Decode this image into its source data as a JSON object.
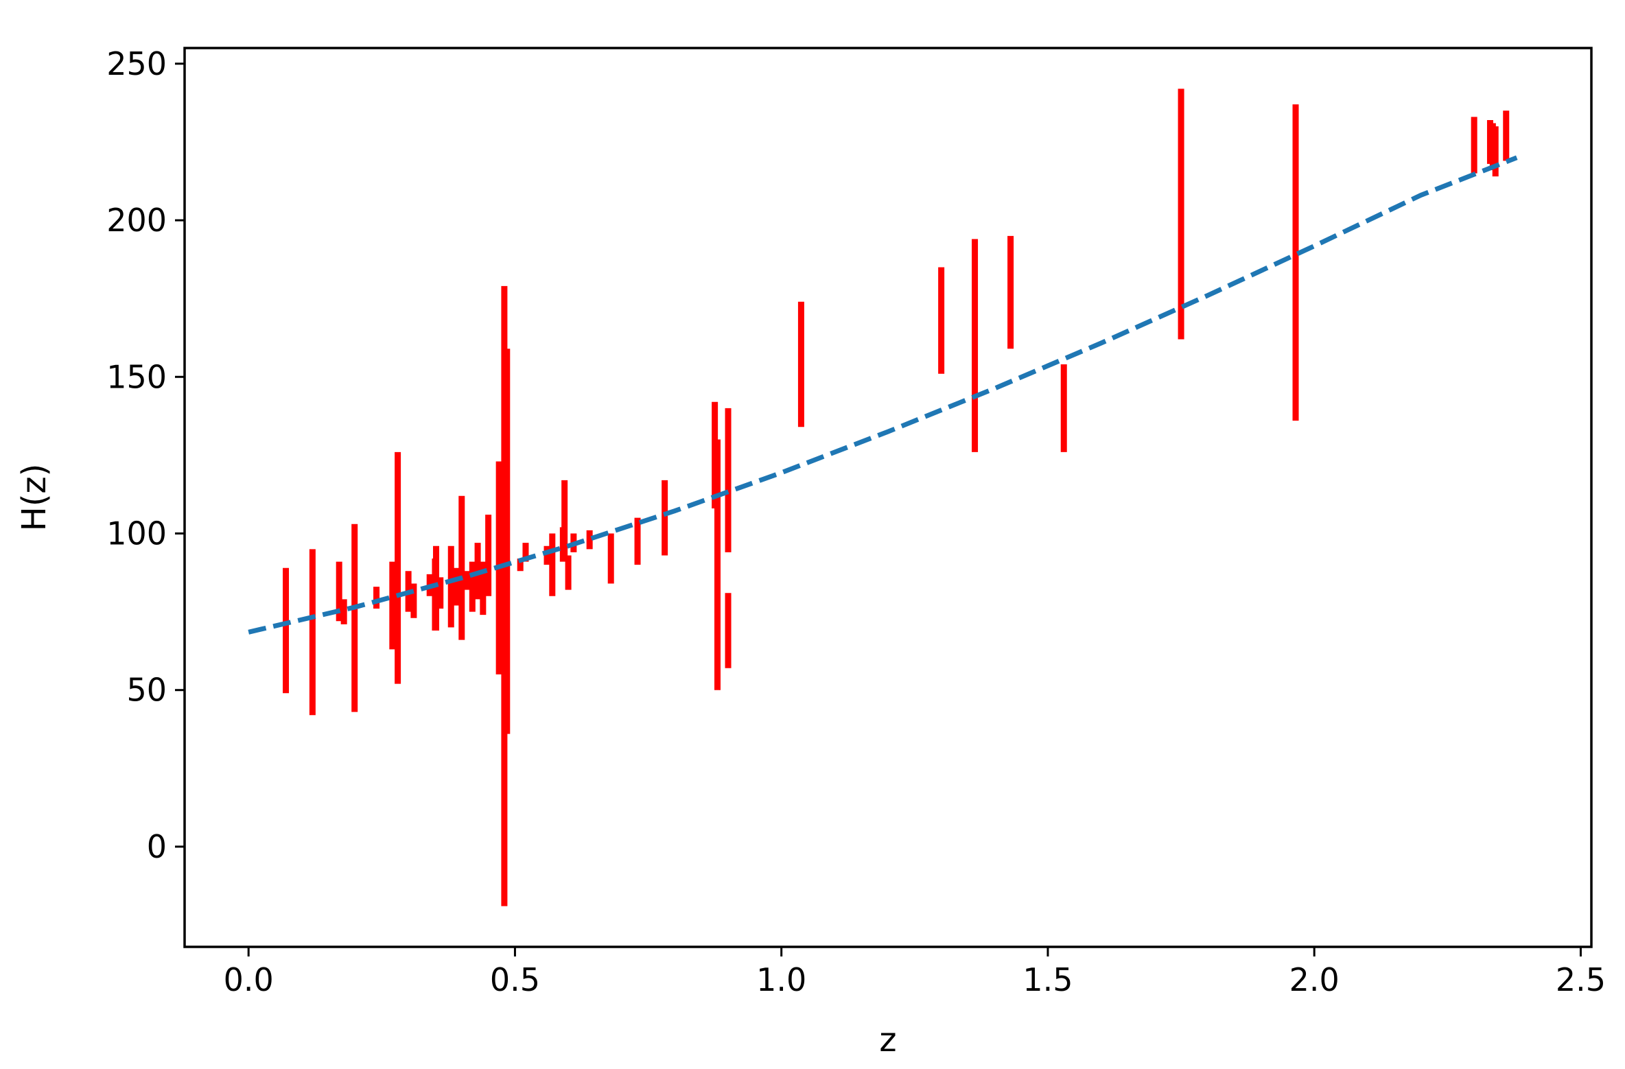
{
  "chart_data": {
    "type": "scatter",
    "title": "",
    "xlabel": "z",
    "ylabel": "H(z)",
    "xlim": [
      -0.12,
      2.52
    ],
    "ylim": [
      -32,
      255
    ],
    "xticks": [
      0.0,
      0.5,
      1.0,
      1.5,
      2.0,
      2.5
    ],
    "xtick_labels": [
      "0.0",
      "0.5",
      "1.0",
      "1.5",
      "2.0",
      "2.5"
    ],
    "yticks": [
      0,
      50,
      100,
      150,
      200,
      250
    ],
    "ytick_labels": [
      "0",
      "50",
      "100",
      "150",
      "200",
      "250"
    ],
    "grid": false,
    "colors": {
      "errorbars": "#ff0000",
      "model_line": "#1f77b4"
    },
    "series": [
      {
        "kind": "errorbar",
        "points": [
          {
            "z": 0.07,
            "ylow": 49,
            "yhigh": 89
          },
          {
            "z": 0.12,
            "ylow": 42,
            "yhigh": 95
          },
          {
            "z": 0.17,
            "ylow": 72,
            "yhigh": 91
          },
          {
            "z": 0.179,
            "ylow": 71,
            "yhigh": 79
          },
          {
            "z": 0.199,
            "ylow": 43,
            "yhigh": 103
          },
          {
            "z": 0.24,
            "ylow": 76,
            "yhigh": 83
          },
          {
            "z": 0.27,
            "ylow": 63,
            "yhigh": 91
          },
          {
            "z": 0.28,
            "ylow": 52,
            "yhigh": 126
          },
          {
            "z": 0.3,
            "ylow": 75,
            "yhigh": 88
          },
          {
            "z": 0.31,
            "ylow": 73,
            "yhigh": 84
          },
          {
            "z": 0.34,
            "ylow": 80,
            "yhigh": 87
          },
          {
            "z": 0.35,
            "ylow": 69,
            "yhigh": 92
          },
          {
            "z": 0.352,
            "ylow": 69,
            "yhigh": 96
          },
          {
            "z": 0.36,
            "ylow": 76,
            "yhigh": 86
          },
          {
            "z": 0.38,
            "ylow": 70,
            "yhigh": 96
          },
          {
            "z": 0.39,
            "ylow": 77,
            "yhigh": 89
          },
          {
            "z": 0.4,
            "ylow": 66,
            "yhigh": 112
          },
          {
            "z": 0.41,
            "ylow": 82,
            "yhigh": 88
          },
          {
            "z": 0.42,
            "ylow": 75,
            "yhigh": 91
          },
          {
            "z": 0.43,
            "ylow": 79,
            "yhigh": 97
          },
          {
            "z": 0.44,
            "ylow": 74,
            "yhigh": 91
          },
          {
            "z": 0.45,
            "ylow": 80,
            "yhigh": 106
          },
          {
            "z": 0.47,
            "ylow": 55,
            "yhigh": 123
          },
          {
            "z": 0.475,
            "ylow": 58,
            "yhigh": 112
          },
          {
            "z": 0.48,
            "ylow": -19,
            "yhigh": 179
          },
          {
            "z": 0.485,
            "ylow": 36,
            "yhigh": 159
          },
          {
            "z": 0.51,
            "ylow": 88,
            "yhigh": 92
          },
          {
            "z": 0.52,
            "ylow": 91,
            "yhigh": 97
          },
          {
            "z": 0.56,
            "ylow": 90,
            "yhigh": 96
          },
          {
            "z": 0.57,
            "ylow": 80,
            "yhigh": 100
          },
          {
            "z": 0.59,
            "ylow": 91,
            "yhigh": 102
          },
          {
            "z": 0.593,
            "ylow": 92,
            "yhigh": 117
          },
          {
            "z": 0.6,
            "ylow": 82,
            "yhigh": 93
          },
          {
            "z": 0.61,
            "ylow": 94,
            "yhigh": 100
          },
          {
            "z": 0.64,
            "ylow": 95,
            "yhigh": 101
          },
          {
            "z": 0.68,
            "ylow": 84,
            "yhigh": 100
          },
          {
            "z": 0.73,
            "ylow": 90,
            "yhigh": 105
          },
          {
            "z": 0.781,
            "ylow": 93,
            "yhigh": 117
          },
          {
            "z": 0.875,
            "ylow": 108,
            "yhigh": 142
          },
          {
            "z": 0.88,
            "ylow": 50,
            "yhigh": 130
          },
          {
            "z": 0.9,
            "ylow": 94,
            "yhigh": 140
          },
          {
            "z": 0.9,
            "ylow": 57,
            "yhigh": 81
          },
          {
            "z": 1.037,
            "ylow": 134,
            "yhigh": 174
          },
          {
            "z": 1.3,
            "ylow": 151,
            "yhigh": 185
          },
          {
            "z": 1.363,
            "ylow": 126,
            "yhigh": 194
          },
          {
            "z": 1.43,
            "ylow": 159,
            "yhigh": 195
          },
          {
            "z": 1.53,
            "ylow": 126,
            "yhigh": 154
          },
          {
            "z": 1.75,
            "ylow": 162,
            "yhigh": 242
          },
          {
            "z": 1.965,
            "ylow": 136,
            "yhigh": 237
          },
          {
            "z": 2.3,
            "ylow": 215,
            "yhigh": 233
          },
          {
            "z": 2.33,
            "ylow": 218,
            "yhigh": 232
          },
          {
            "z": 2.335,
            "ylow": 216,
            "yhigh": 231
          },
          {
            "z": 2.34,
            "ylow": 214,
            "yhigh": 230
          },
          {
            "z": 2.36,
            "ylow": 219,
            "yhigh": 235
          }
        ]
      },
      {
        "kind": "model-line",
        "style": "dashed",
        "x": [
          0.0,
          0.2,
          0.4,
          0.6,
          0.8,
          1.0,
          1.2,
          1.4,
          1.6,
          1.8,
          2.0,
          2.2,
          2.38
        ],
        "y": [
          68.5,
          76.5,
          85.8,
          96.0,
          107.2,
          119.4,
          132.5,
          146.3,
          160.8,
          176.0,
          191.8,
          208.0,
          220.0
        ]
      }
    ]
  }
}
